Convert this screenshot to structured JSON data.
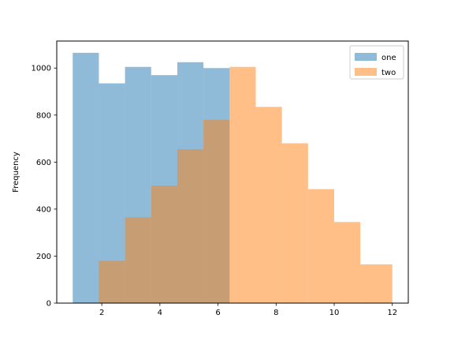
{
  "chart_data": {
    "type": "histogram",
    "title": "",
    "xlabel": "",
    "ylabel": "Frequency",
    "xlim": [
      0.45,
      12.55
    ],
    "ylim": [
      0,
      1115
    ],
    "x_ticks": [
      2,
      4,
      6,
      8,
      10,
      12
    ],
    "y_ticks": [
      0,
      200,
      400,
      600,
      800,
      1000
    ],
    "legend": {
      "position": "top-right"
    },
    "grid": false,
    "series": [
      {
        "name": "one",
        "color": "#1f77b4",
        "opacity": 0.5,
        "bins": [
          {
            "x0": 1.0,
            "x1": 1.9,
            "count": 1065
          },
          {
            "x0": 1.9,
            "x1": 2.8,
            "count": 935
          },
          {
            "x0": 2.8,
            "x1": 3.7,
            "count": 1005
          },
          {
            "x0": 3.7,
            "x1": 4.6,
            "count": 970
          },
          {
            "x0": 4.6,
            "x1": 5.5,
            "count": 1025
          },
          {
            "x0": 5.5,
            "x1": 6.4,
            "count": 1000
          }
        ]
      },
      {
        "name": "two",
        "color": "#ff7f0e",
        "opacity": 0.5,
        "bins": [
          {
            "x0": 1.9,
            "x1": 2.8,
            "count": 180
          },
          {
            "x0": 2.8,
            "x1": 3.7,
            "count": 365
          },
          {
            "x0": 3.7,
            "x1": 4.6,
            "count": 500
          },
          {
            "x0": 4.6,
            "x1": 5.5,
            "count": 655
          },
          {
            "x0": 5.5,
            "x1": 6.4,
            "count": 780
          },
          {
            "x0": 6.4,
            "x1": 7.3,
            "count": 1005
          },
          {
            "x0": 7.3,
            "x1": 8.2,
            "count": 835
          },
          {
            "x0": 8.2,
            "x1": 9.1,
            "count": 680
          },
          {
            "x0": 9.1,
            "x1": 10.0,
            "count": 485
          },
          {
            "x0": 10.0,
            "x1": 10.9,
            "count": 345
          },
          {
            "x0": 10.9,
            "x1": 12.0,
            "count": 165
          }
        ]
      }
    ]
  }
}
